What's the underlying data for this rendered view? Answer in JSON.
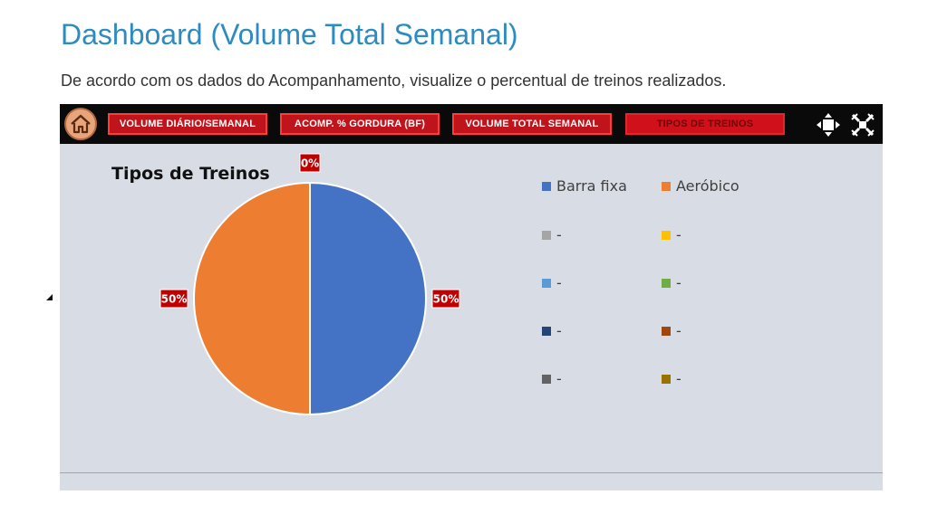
{
  "page": {
    "title": "Dashboard (Volume Total Semanal)",
    "subtitle": "De acordo com os dados do Acompanhamento, visualize o percentual de treinos realizados."
  },
  "toolbar": {
    "home_icon": "house-icon",
    "buttons": [
      {
        "label": "VOLUME DIÁRIO/SEMANAL",
        "active": false
      },
      {
        "label": "ACOMP. % GORDURA (BF)",
        "active": false
      },
      {
        "label": "VOLUME TOTAL SEMANAL",
        "active": false
      },
      {
        "label": "TIPOS DE TREINOS",
        "active": true
      }
    ],
    "right_icons": [
      "expand-arrows-icon",
      "collapse-arrows-icon"
    ]
  },
  "chart_data": {
    "type": "pie",
    "title": "Tipos de Treinos",
    "start_angle_deg": 0,
    "slices": [
      {
        "name": "Barra fixa",
        "value": 50,
        "label": "50%",
        "color": "#4472c4"
      },
      {
        "name": "Aeróbico",
        "value": 50,
        "label": "50%",
        "color": "#ed7d31"
      },
      {
        "name": "-",
        "value": 0,
        "label": "0%",
        "color": "#a5a5a5"
      },
      {
        "name": "-",
        "value": 0,
        "label": "",
        "color": "#ffc000"
      },
      {
        "name": "-",
        "value": 0,
        "label": "",
        "color": "#5b9bd5"
      },
      {
        "name": "-",
        "value": 0,
        "label": "",
        "color": "#70ad47"
      },
      {
        "name": "-",
        "value": 0,
        "label": "",
        "color": "#264478"
      },
      {
        "name": "-",
        "value": 0,
        "label": "",
        "color": "#9e480e"
      },
      {
        "name": "-",
        "value": 0,
        "label": "",
        "color": "#636363"
      },
      {
        "name": "-",
        "value": 0,
        "label": "",
        "color": "#997300"
      }
    ],
    "legend_position": "right",
    "label_color": "#c00000"
  }
}
